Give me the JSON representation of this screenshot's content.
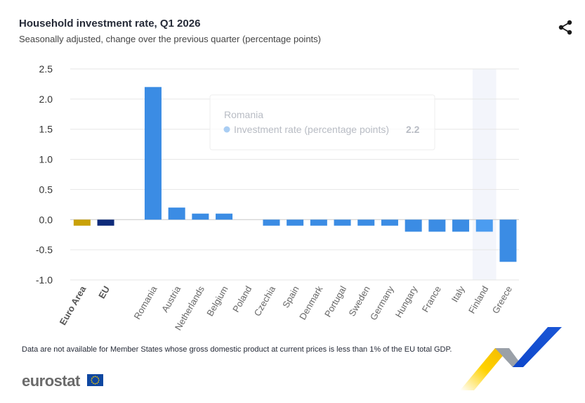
{
  "header": {
    "title": "Household investment rate, Q1 2026",
    "subtitle": "Seasonally adjusted, change over the previous quarter (percentage points)"
  },
  "icons": {
    "share": "share-icon",
    "flag": "eu-flag-icon"
  },
  "colors": {
    "euro_area": "#c9a107",
    "eu": "#0e2b7a",
    "country": "#3b8ce4",
    "country_hover": "#4b9cf0",
    "highlight_band": "#f3f5fb",
    "grid": "#e6e6e6"
  },
  "chart_data": {
    "type": "bar",
    "title": "Household investment rate, Q1 2026",
    "subtitle": "Seasonally adjusted, change over the previous quarter (percentage points)",
    "xlabel": "",
    "ylabel": "",
    "ylim": [
      -1.0,
      2.5
    ],
    "yticks": [
      "2.5",
      "2.0",
      "1.5",
      "1.0",
      "0.5",
      "0.0",
      "-0.5",
      "-1.0"
    ],
    "ytick_values": [
      2.5,
      2.0,
      1.5,
      1.0,
      0.5,
      0.0,
      -0.5,
      -1.0
    ],
    "grid": true,
    "categories": [
      "Euro Area",
      "EU",
      "",
      "Romania",
      "Austria",
      "Netherlands",
      "Belgium",
      "Poland",
      "Czechia",
      "Spain",
      "Denmark",
      "Portugal",
      "Sweden",
      "Germany",
      "Hungary",
      "France",
      "Italy",
      "Finland",
      "Greece"
    ],
    "bold_categories": [
      "Euro Area",
      "EU"
    ],
    "series": [
      {
        "values": [
          -0.1,
          -0.1,
          null,
          2.2,
          0.2,
          0.1,
          0.1,
          null,
          -0.1,
          -0.1,
          -0.1,
          -0.1,
          -0.1,
          -0.1,
          -0.2,
          -0.2,
          -0.2,
          -0.2,
          -0.7
        ]
      }
    ],
    "highlighted_category": "Finland",
    "tooltip": {
      "category": "Romania",
      "series_label": "Investment rate (percentage points)",
      "value": "2.2"
    }
  },
  "footer": {
    "note": "Data are not available for Member States whose gross domestic product at current prices is less than 1% of the EU total GDP.",
    "logo": "eurostat"
  }
}
